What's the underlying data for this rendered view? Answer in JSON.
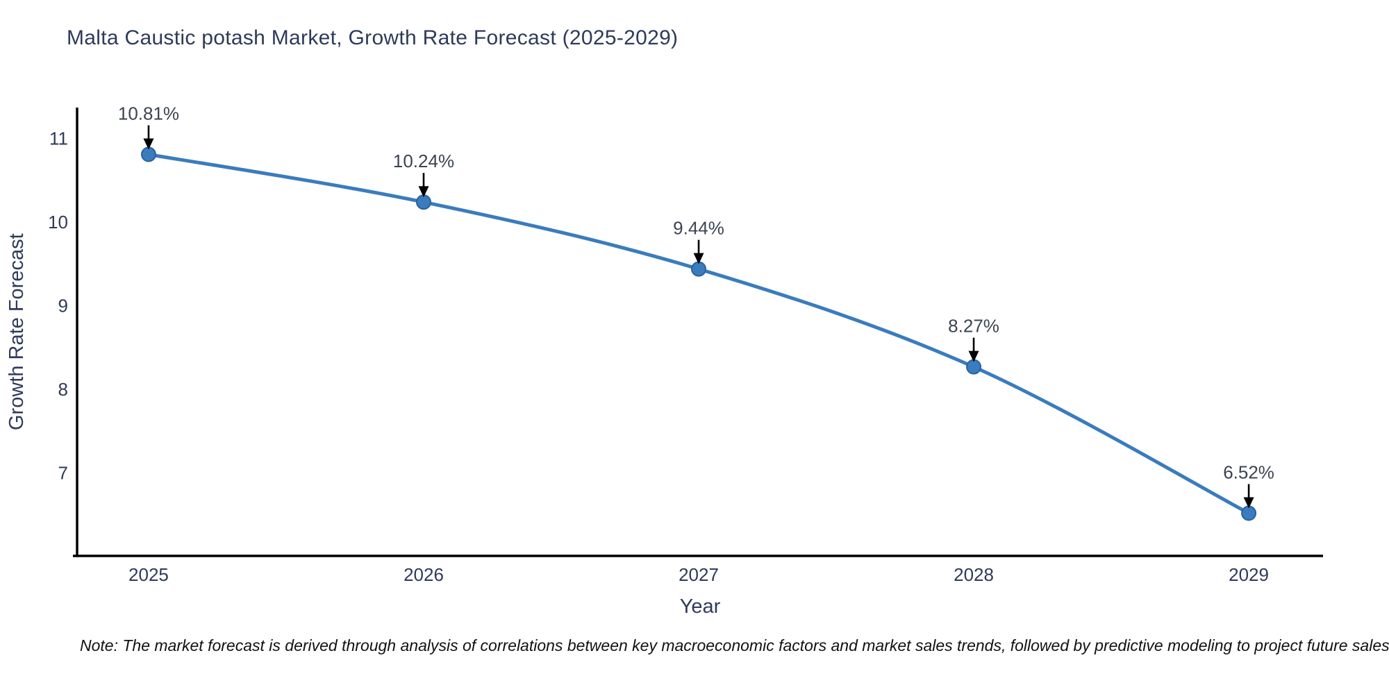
{
  "header": {
    "title": "Malta Caustic potash Market, Growth Rate Forecast (2025-2029)"
  },
  "chart_data": {
    "type": "line",
    "title": "Malta Caustic potash Market, Growth Rate Forecast (2025-2029)",
    "xlabel": "Year",
    "ylabel": "Growth Rate Forecast",
    "x": [
      2025,
      2026,
      2027,
      2028,
      2029
    ],
    "values": [
      10.81,
      10.24,
      9.44,
      8.27,
      6.52
    ],
    "point_labels": [
      "10.81%",
      "10.24%",
      "9.44%",
      "8.27%",
      "6.52%"
    ],
    "series_name": "Growth Rate Forecast",
    "xticks": [
      "2025",
      "2026",
      "2027",
      "2028",
      "2029"
    ],
    "xtick_values": [
      2025,
      2026,
      2027,
      2028,
      2029
    ],
    "yticks": [
      "7",
      "8",
      "9",
      "10",
      "11"
    ],
    "ytick_values": [
      7,
      8,
      9,
      10,
      11
    ],
    "xlim": [
      2024.74,
      2029.27
    ],
    "ylim": [
      6.01,
      11.37
    ],
    "grid": false,
    "legend_position": "none",
    "line_shape": "spline",
    "colors": {
      "line": "#3a7cbd",
      "marker": "#3a7cbd",
      "marker_edge": "#2a639e",
      "axis": "#000000",
      "tick_text": "#2e3a59",
      "annotation_text": "#3b4451",
      "arrow": "#000000",
      "background": "#ffffff"
    }
  },
  "footer": {
    "note": "Note: The market forecast is derived through analysis of correlations between key macroeconomic factors and market sales trends, followed by predictive modeling to project future sales"
  }
}
